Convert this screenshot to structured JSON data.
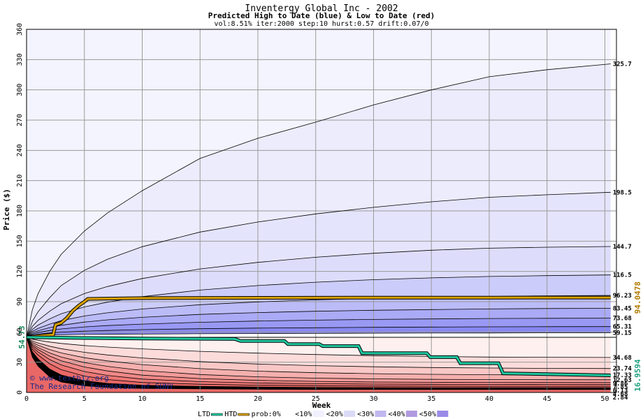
{
  "chart_data": {
    "type": "area",
    "title": "Inventergy Global Inc - 2002",
    "subtitle": "Predicted High to Date (blue) &  Low to Date (red)",
    "params": "vol:8.51% iter:2000 step:10 hurst:0.57 drift:0.07/0",
    "xlabel": "Week",
    "ylabel": "Price ($)",
    "xlim": [
      0,
      51
    ],
    "ylim": [
      0,
      360
    ],
    "xticks": [
      0,
      5,
      10,
      15,
      20,
      25,
      30,
      35,
      40,
      45,
      50
    ],
    "yticks": [
      0,
      30,
      60,
      90,
      120,
      150,
      180,
      210,
      240,
      270,
      300,
      330,
      360
    ],
    "grid": true,
    "start_price": 54.73,
    "start_label": "54.73",
    "x": [
      0,
      0.5,
      1,
      2,
      3,
      5,
      7,
      10,
      15,
      20,
      25,
      30,
      35,
      40,
      45,
      50.5
    ],
    "upper_bands": [
      {
        "label": "59.15",
        "value": 59.15,
        "values": [
          54.73,
          55.8,
          56.4,
          56.9,
          57.2,
          57.5,
          57.7,
          57.9,
          58.2,
          58.4,
          58.6,
          58.8,
          58.9,
          59.0,
          59.1,
          59.15
        ]
      },
      {
        "label": "65.31",
        "value": 65.31,
        "values": [
          54.73,
          56.8,
          57.8,
          59.0,
          59.8,
          60.8,
          61.5,
          62.3,
          63.2,
          63.8,
          64.2,
          64.6,
          64.9,
          65.1,
          65.2,
          65.31
        ]
      },
      {
        "label": "73.68",
        "value": 73.68,
        "values": [
          54.73,
          57.8,
          59.4,
          61.5,
          63.0,
          65.0,
          66.3,
          67.8,
          69.6,
          70.8,
          71.7,
          72.4,
          72.9,
          73.3,
          73.5,
          73.68
        ]
      },
      {
        "label": "83.45",
        "value": 83.45,
        "values": [
          54.73,
          59.0,
          61.2,
          64.3,
          66.6,
          69.8,
          72.0,
          74.5,
          77.4,
          79.2,
          80.5,
          81.5,
          82.2,
          82.8,
          83.2,
          83.45
        ]
      },
      {
        "label": "96.23",
        "value": 96.23,
        "values": [
          54.73,
          60.5,
          63.5,
          67.8,
          71.2,
          75.8,
          79.0,
          82.7,
          87.0,
          89.8,
          91.8,
          93.3,
          94.4,
          95.2,
          95.8,
          96.23
        ]
      },
      {
        "label": "116.5",
        "value": 116.5,
        "values": [
          54.73,
          62.5,
          66.8,
          73.0,
          78.0,
          84.8,
          89.5,
          95.0,
          101.5,
          106.0,
          109.3,
          111.8,
          113.6,
          115.0,
          115.8,
          116.5
        ]
      },
      {
        "label": "144.7",
        "value": 144.7,
        "values": [
          54.73,
          65.5,
          71.5,
          80.5,
          88.0,
          98.0,
          105.0,
          113.0,
          122.5,
          129.0,
          134.0,
          138.0,
          141.0,
          143.0,
          144.0,
          144.7
        ]
      },
      {
        "label": "198.5",
        "value": 198.5,
        "values": [
          54.73,
          70.5,
          80.0,
          94.0,
          106.0,
          121.0,
          132.0,
          144.5,
          159.0,
          169.0,
          177.0,
          183.5,
          189.0,
          193.5,
          196.0,
          198.5
        ]
      },
      {
        "label": "325.7",
        "value": 325.7,
        "values": [
          54.73,
          82.0,
          98.0,
          120.0,
          137.0,
          160.0,
          178.0,
          200.0,
          232.0,
          252.0,
          268.0,
          285.0,
          300.0,
          313.0,
          320.0,
          325.7
        ]
      }
    ],
    "lower_bands": [
      {
        "label": "34.68",
        "value": 34.68,
        "values": [
          54.73,
          52.8,
          51.8,
          50.0,
          48.6,
          46.5,
          45.0,
          43.2,
          40.8,
          39.0,
          37.6,
          36.5,
          35.7,
          35.1,
          34.9,
          34.68
        ]
      },
      {
        "label": "23.74",
        "value": 23.74,
        "values": [
          54.73,
          51.0,
          49.0,
          45.8,
          43.4,
          39.8,
          37.2,
          34.2,
          30.6,
          28.2,
          26.6,
          25.5,
          24.7,
          24.2,
          23.9,
          23.74
        ]
      },
      {
        "label": "17.33",
        "value": 17.33,
        "values": [
          54.73,
          49.5,
          46.8,
          42.5,
          39.2,
          34.5,
          31.3,
          27.6,
          23.6,
          21.1,
          19.6,
          18.6,
          18.0,
          17.6,
          17.4,
          17.33
        ]
      },
      {
        "label": "12.63",
        "value": 12.63,
        "values": [
          54.73,
          48.0,
          44.5,
          39.2,
          35.1,
          29.6,
          25.9,
          21.8,
          17.8,
          15.5,
          14.2,
          13.5,
          13.0,
          12.8,
          12.7,
          12.63
        ]
      },
      {
        "label": "9.86",
        "value": 9.86,
        "values": [
          54.73,
          46.6,
          42.5,
          36.1,
          31.4,
          25.3,
          21.3,
          17.2,
          13.8,
          12.0,
          11.0,
          10.4,
          10.1,
          9.95,
          9.9,
          9.86
        ]
      },
      {
        "label": "7.85",
        "value": 7.85,
        "values": [
          54.73,
          45.0,
          40.1,
          32.6,
          27.3,
          20.8,
          16.9,
          13.3,
          10.7,
          9.4,
          8.7,
          8.3,
          8.1,
          7.95,
          7.9,
          7.85
        ]
      },
      {
        "label": "6.13",
        "value": 6.13,
        "values": [
          54.73,
          43.0,
          37.2,
          28.4,
          22.6,
          16.3,
          12.8,
          9.9,
          8.2,
          7.2,
          6.7,
          6.4,
          6.25,
          6.18,
          6.15,
          6.13
        ]
      },
      {
        "label": "4.68",
        "value": 4.68,
        "values": [
          54.73,
          40.5,
          33.3,
          23.2,
          17.3,
          11.7,
          9.0,
          7.2,
          6.0,
          5.4,
          5.0,
          4.85,
          4.75,
          4.71,
          4.69,
          4.68
        ]
      },
      {
        "label": "2.84",
        "value": 2.84,
        "values": [
          54.73,
          35.0,
          26.0,
          15.5,
          10.4,
          6.6,
          5.0,
          4.0,
          3.5,
          3.2,
          3.0,
          2.95,
          2.9,
          2.87,
          2.85,
          2.84
        ]
      }
    ],
    "series": [
      {
        "name": "HTD",
        "color": "#d8a000",
        "end_label": "94.0478",
        "x": [
          0,
          0.5,
          1,
          1.5,
          2.3,
          2.5,
          3,
          3.5,
          4,
          4.5,
          5,
          5.3,
          10,
          20,
          30,
          40,
          50.5
        ],
        "values": [
          54.73,
          55.5,
          56.0,
          56.5,
          57.2,
          67.0,
          69.0,
          74.0,
          81.0,
          86.0,
          90.0,
          92.8,
          93.5,
          93.8,
          94.0,
          94.0,
          94.05
        ]
      },
      {
        "name": "LTD",
        "color": "#20c8a0",
        "end_label": "16.9594",
        "x": [
          0,
          5,
          10,
          18,
          18.5,
          22.3,
          22.6,
          25.3,
          25.6,
          28.7,
          29,
          34.6,
          34.9,
          37.2,
          37.5,
          40.8,
          41.2,
          50.5
        ],
        "values": [
          54.73,
          54.0,
          53.5,
          53.0,
          51.0,
          51.0,
          48.0,
          48.0,
          46.0,
          46.0,
          39.0,
          39.0,
          35.0,
          35.0,
          29.0,
          29.0,
          19.0,
          16.96
        ]
      }
    ],
    "legend": {
      "position": "bottom",
      "items": [
        {
          "label": "LTD",
          "kind": "line",
          "color": "#20c8a0"
        },
        {
          "label": "HTD",
          "kind": "line",
          "color": "#d8a000"
        },
        {
          "label": "prob:0%",
          "kind": "swatch",
          "color": "#ffffff"
        },
        {
          "label": "<10%",
          "kind": "swatch",
          "color": "#f0f0ff"
        },
        {
          "label": "<20%",
          "kind": "swatch",
          "color": "#dadaf7"
        },
        {
          "label": "<30%",
          "kind": "swatch",
          "color": "#c0b8ee"
        },
        {
          "label": "<40%",
          "kind": "swatch",
          "color": "#b09ae0"
        },
        {
          "label": "<50%",
          "kind": "swatch",
          "color": "#9a8ae8"
        }
      ]
    },
    "watermark": [
      "© www.textbiz.org",
      "The Research Foundation of SUNY"
    ],
    "colors": {
      "upper_fills": [
        "#8888f2",
        "#9999f4",
        "#aaaaf6",
        "#bbbbf8",
        "#ccccfa",
        "#ddddfb",
        "#e4e4fc",
        "#ececfd"
      ],
      "outer_fill": "#f4f4fe",
      "lower_fills": [
        "#fdf0ef",
        "#fbdcdb",
        "#f9c8c6",
        "#f5b0ae",
        "#f29b99",
        "#ef8886",
        "#ec7775",
        "#e96866"
      ]
    }
  }
}
